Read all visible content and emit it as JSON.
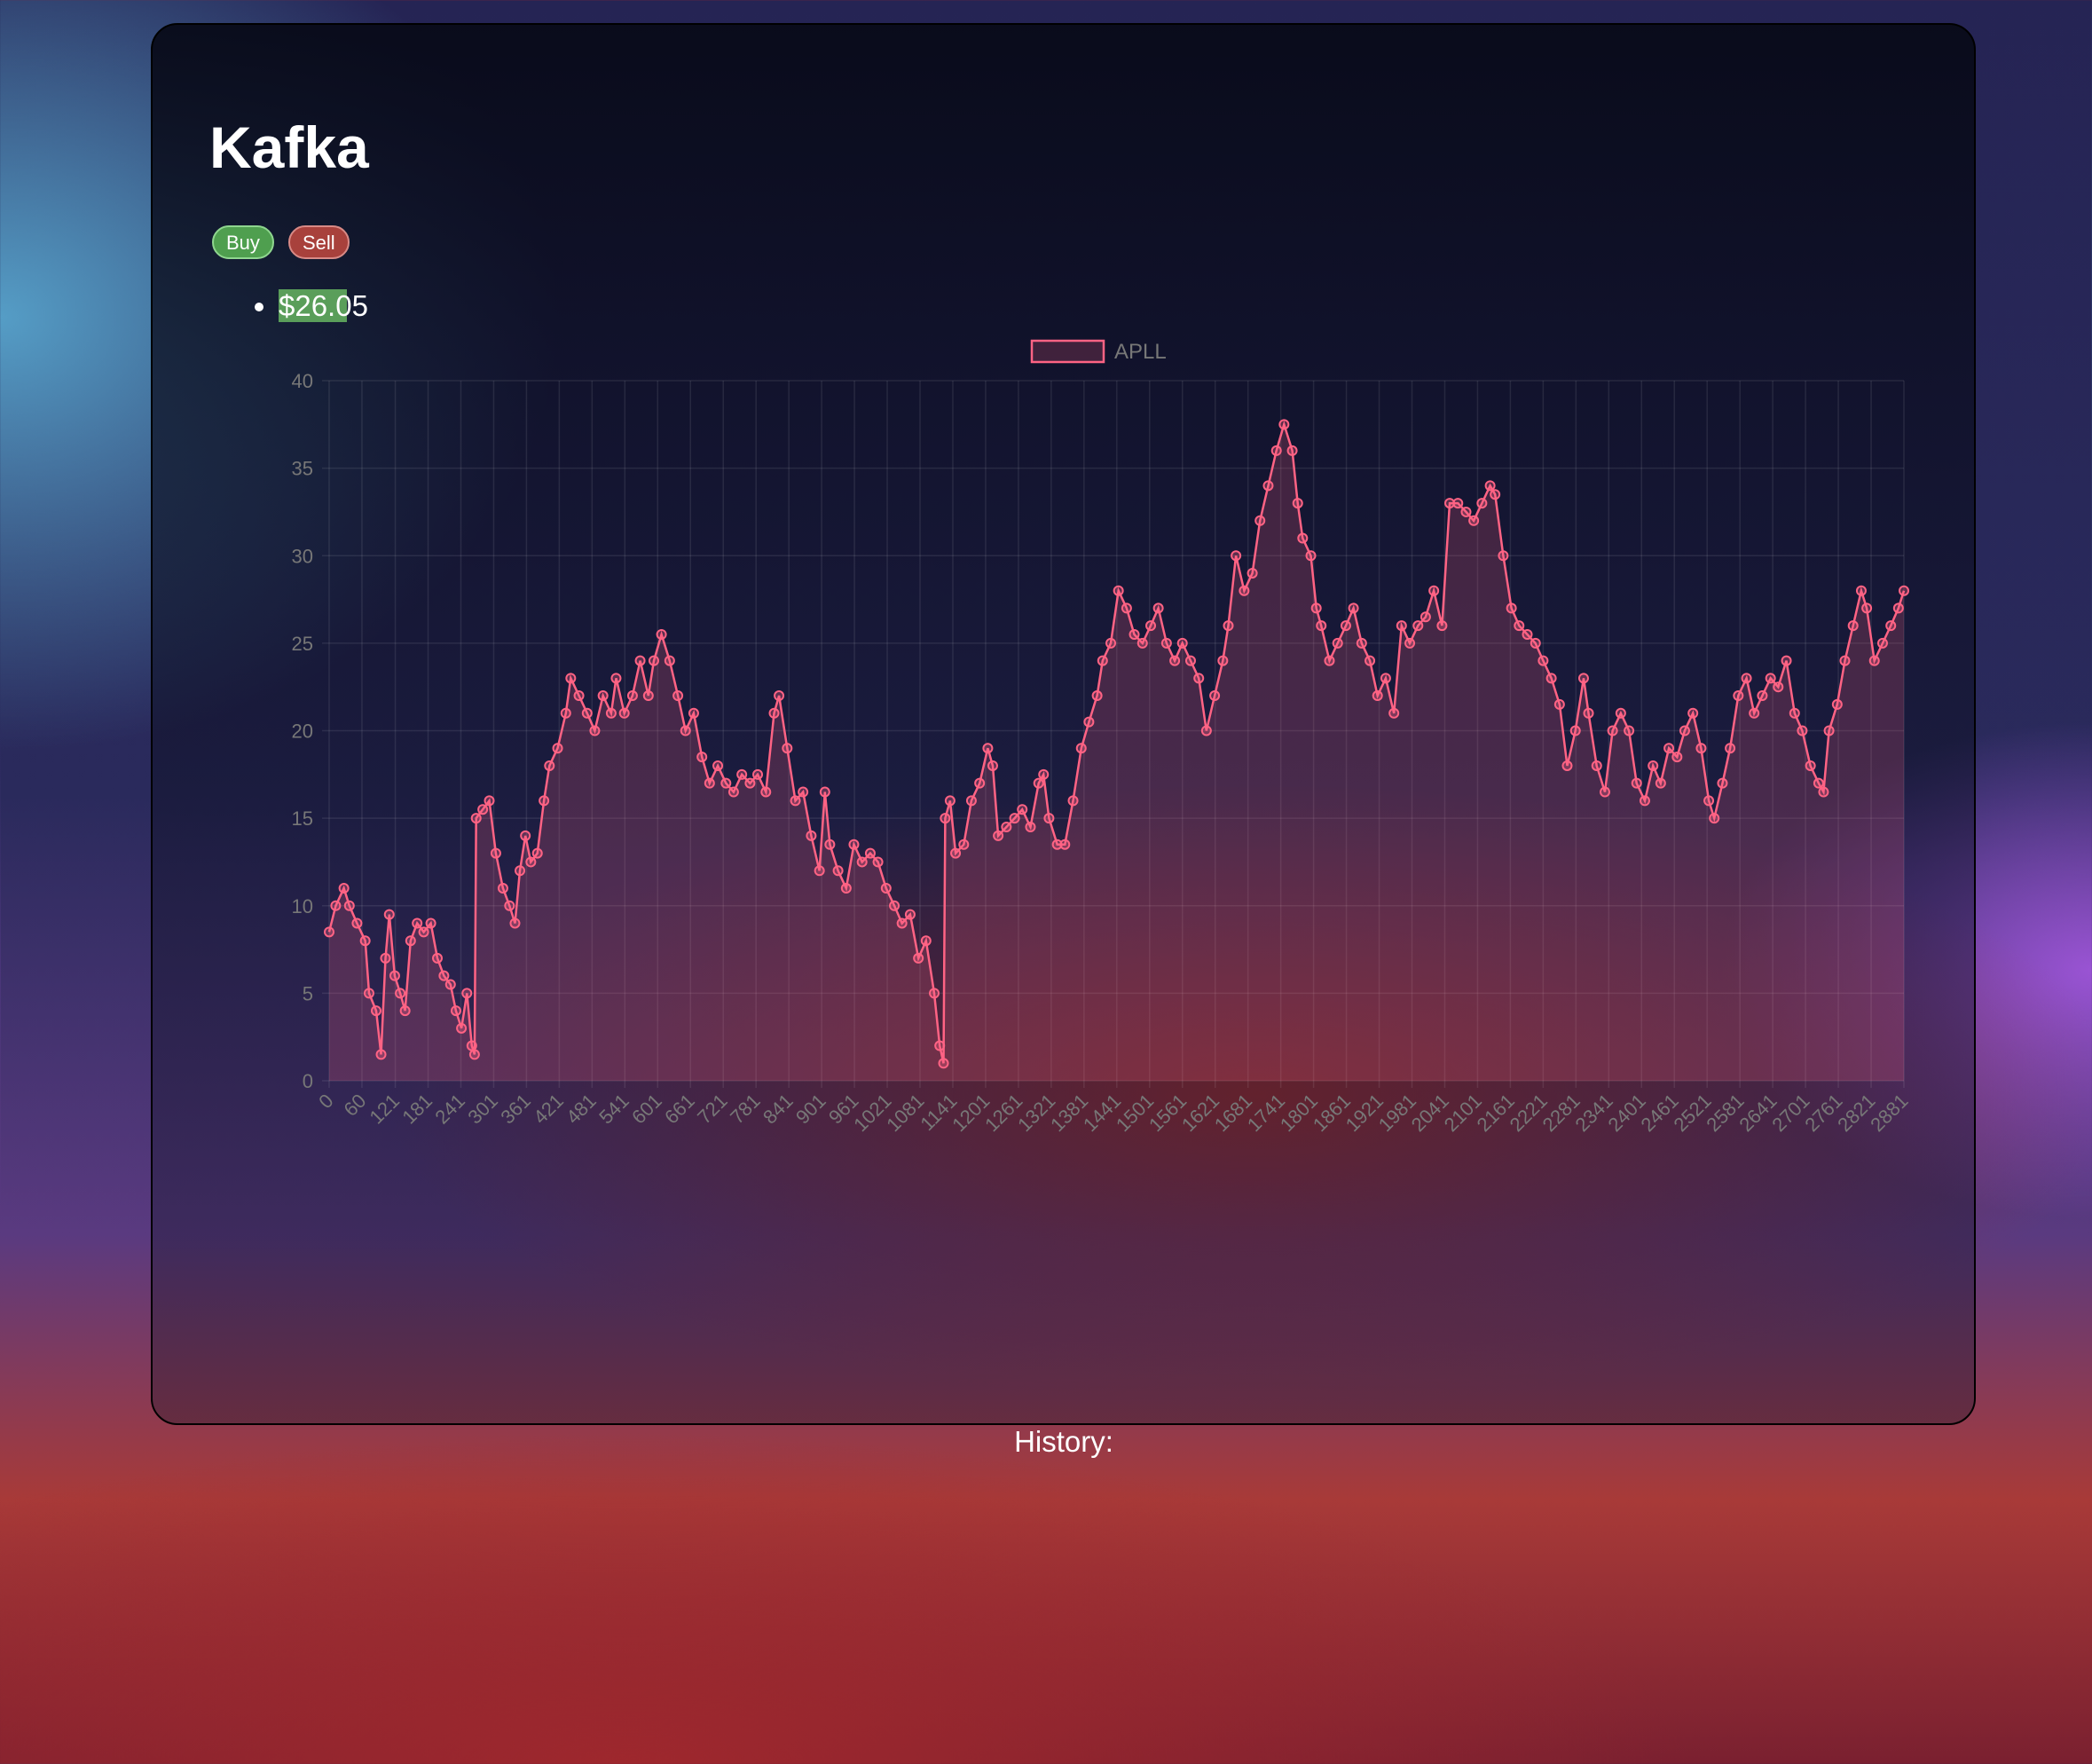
{
  "title": "Kafka",
  "buttons": [
    "Buy",
    "Sell"
  ],
  "price": "$26.05",
  "history_label": "History:",
  "chart_data": {
    "type": "line",
    "x": [
      0,
      12,
      27,
      37,
      51,
      66,
      73,
      86,
      95,
      103,
      110,
      120,
      130,
      139,
      149,
      161,
      173,
      186,
      198,
      210,
      222,
      232,
      242,
      252,
      261,
      266,
      269,
      281,
      293,
      305,
      318,
      330,
      340,
      349,
      359,
      369,
      381,
      393,
      403,
      418,
      433,
      442,
      457,
      472,
      486,
      501,
      516,
      525,
      540,
      555,
      569,
      584,
      594,
      608,
      623,
      638,
      652,
      667,
      682,
      696,
      711,
      726,
      740,
      755,
      770,
      784,
      799,
      814,
      823,
      838,
      853,
      867,
      882,
      897,
      907,
      916,
      931,
      946,
      960,
      975,
      990,
      1004,
      1019,
      1034,
      1048,
      1063,
      1078,
      1092,
      1107,
      1117,
      1124,
      1127,
      1136,
      1146,
      1161,
      1175,
      1190,
      1205,
      1214,
      1224,
      1239,
      1254,
      1268,
      1283,
      1298,
      1307,
      1317,
      1332,
      1346,
      1361,
      1376,
      1390,
      1405,
      1415,
      1430,
      1444,
      1459,
      1473,
      1488,
      1503,
      1517,
      1532,
      1547,
      1561,
      1576,
      1591,
      1605,
      1620,
      1635,
      1645,
      1659,
      1674,
      1689,
      1703,
      1718,
      1733,
      1747,
      1762,
      1772,
      1781,
      1796,
      1806,
      1815,
      1830,
      1845,
      1860,
      1874,
      1889,
      1904,
      1918,
      1933,
      1948,
      1962,
      1977,
      1992,
      2006,
      2021,
      2036,
      2050,
      2065,
      2080,
      2094,
      2109,
      2124,
      2133,
      2148,
      2163,
      2177,
      2192,
      2207,
      2221,
      2236,
      2251,
      2265,
      2280,
      2295,
      2304,
      2319,
      2334,
      2348,
      2363,
      2378,
      2392,
      2407,
      2422,
      2436,
      2451,
      2466,
      2480,
      2495,
      2510,
      2524,
      2534,
      2549,
      2563,
      2578,
      2593,
      2607,
      2622,
      2637,
      2651,
      2666,
      2681,
      2695,
      2710,
      2725,
      2734,
      2744,
      2759,
      2773,
      2788,
      2803,
      2813,
      2827,
      2842,
      2857,
      2871,
      2881
    ],
    "series": [
      {
        "name": "APLL",
        "color": "#ff6384",
        "fill": true,
        "values": [
          8.5,
          10,
          11,
          10,
          9,
          8,
          5,
          4,
          1.5,
          7,
          9.5,
          6,
          5,
          4,
          8,
          9,
          8.5,
          9,
          7,
          6,
          5.5,
          4,
          3,
          5,
          2,
          1.5,
          15,
          15.5,
          16,
          13,
          11,
          10,
          9,
          12,
          14,
          12.5,
          13,
          16,
          18,
          19,
          21,
          23,
          22,
          21,
          20,
          22,
          21,
          23,
          21,
          22,
          24,
          22,
          24,
          25.5,
          24,
          22,
          20,
          21,
          18.5,
          17,
          18,
          17,
          16.5,
          17.5,
          17,
          17.5,
          16.5,
          21,
          22,
          19,
          16,
          16.5,
          14,
          12,
          16.5,
          13.5,
          12,
          11,
          13.5,
          12.5,
          13,
          12.5,
          11,
          10,
          9,
          9.5,
          7,
          8,
          5,
          2,
          1,
          15,
          16,
          13,
          13.5,
          16,
          17,
          19,
          18,
          14,
          14.5,
          15,
          15.5,
          14.5,
          17,
          17.5,
          15,
          13.5,
          13.5,
          16,
          19,
          20.5,
          22,
          24,
          25,
          28,
          27,
          25.5,
          25,
          26,
          27,
          25,
          24,
          25,
          24,
          23,
          20,
          22,
          24,
          26,
          30,
          28,
          29,
          32,
          34,
          36,
          37.5,
          36,
          33,
          31,
          30,
          27,
          26,
          24,
          25,
          26,
          27,
          25,
          24,
          22,
          23,
          21,
          26,
          25,
          26,
          26.5,
          28,
          26,
          33,
          33,
          32.5,
          32,
          33,
          34,
          33.5,
          30,
          27,
          26,
          25.5,
          25,
          24,
          23,
          21.5,
          18,
          20,
          23,
          21,
          18,
          16.5,
          20,
          21,
          20,
          17,
          16,
          18,
          17,
          19,
          18.5,
          20,
          21,
          19,
          16,
          15,
          17,
          19,
          22,
          23,
          21,
          22,
          23,
          22.5,
          24,
          21,
          20,
          18,
          17,
          16.5,
          20,
          21.5,
          24,
          26,
          28,
          27,
          24,
          25,
          26,
          27,
          28
        ]
      }
    ],
    "xlim": [
      0,
      2881
    ],
    "xticks": [
      0,
      60,
      121,
      181,
      241,
      301,
      361,
      421,
      481,
      541,
      601,
      661,
      721,
      781,
      841,
      901,
      961,
      1021,
      1081,
      1141,
      1201,
      1261,
      1321,
      1381,
      1441,
      1501,
      1561,
      1621,
      1681,
      1741,
      1801,
      1861,
      1921,
      1981,
      2041,
      2101,
      2161,
      2221,
      2281,
      2341,
      2401,
      2461,
      2521,
      2581,
      2641,
      2701,
      2761,
      2821,
      2881
    ],
    "ylim": [
      0,
      40
    ],
    "yticks": [
      0,
      5,
      10,
      15,
      20,
      25,
      30,
      35,
      40
    ],
    "grid": true
  }
}
